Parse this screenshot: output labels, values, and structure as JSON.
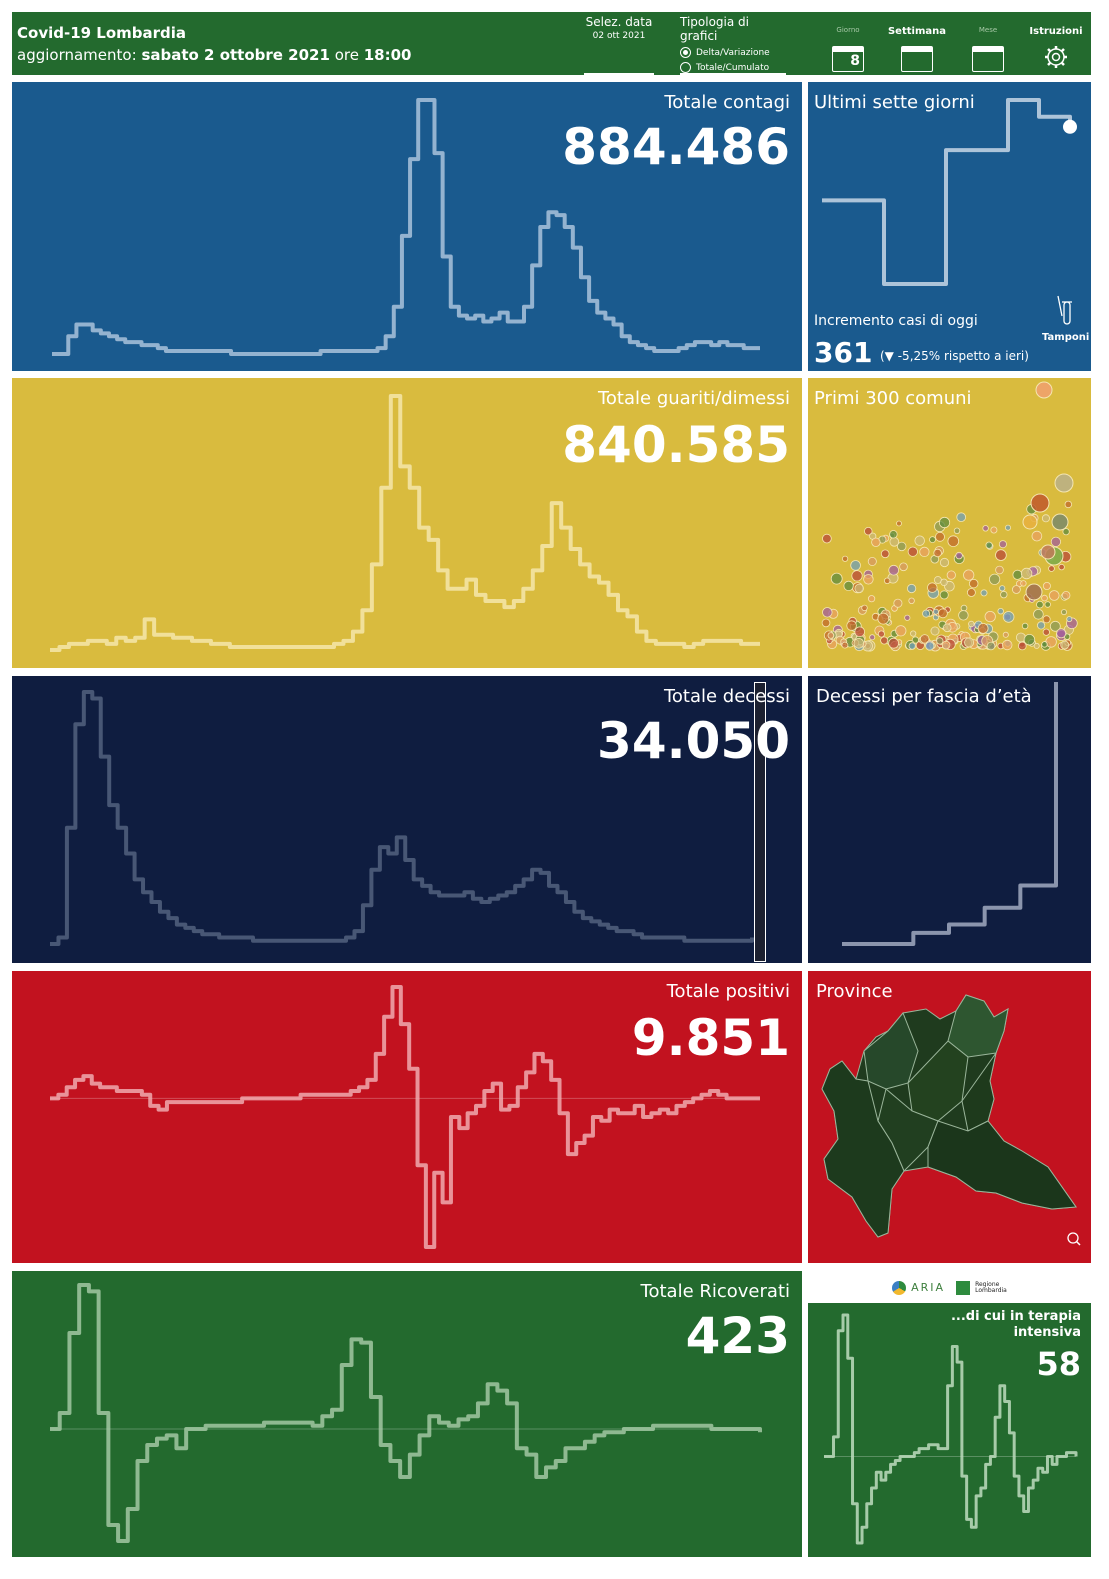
{
  "header": {
    "title": "Covid-19 Lombardia",
    "update_label": "aggiornamento:",
    "update_date": "sabato 2 ottobre 2021",
    "update_time_label": "ore",
    "update_time": "18:00",
    "date_selector_label": "Selez. data",
    "date_selector_value": "02 ott 2021",
    "chart_type_label": "Tipologia di grafici",
    "chart_type_options": [
      "Delta/Variazione",
      "Totale/Cumulato"
    ],
    "chart_type_selected": "Delta/Variazione",
    "period_giorno": "Giorno",
    "period_giorno_num": "8",
    "period_settimana": "Settimana",
    "period_mese": "Mese",
    "instructions": "Istruzioni",
    "bg_color": "#236a2e"
  },
  "panels": {
    "contagi": {
      "title": "Totale contagi",
      "value": "884.486",
      "color": "#1a5a8e"
    },
    "guariti": {
      "title": "Totale guariti/dimessi",
      "value": "840.585",
      "color": "#d9bb3e"
    },
    "decessi": {
      "title": "Totale decessi",
      "value": "34.050",
      "color": "#0f1d40"
    },
    "positivi": {
      "title": "Totale positivi",
      "value": "9.851",
      "color": "#c2121f"
    },
    "ricoverati": {
      "title": "Totale Ricoverati",
      "value": "423",
      "color": "#236a2e"
    }
  },
  "side": {
    "sette_giorni": {
      "title": "Ultimi sette giorni",
      "increment_label": "Incremento casi di oggi",
      "increment_value": "361",
      "increment_change": "(▼ -5,25% rispetto a  ieri)",
      "tamponi": "Tamponi"
    },
    "comuni": {
      "title": "Primi 300 comuni"
    },
    "fascia": {
      "title": "Decessi per fascia d’età"
    },
    "province": {
      "title": "Province"
    },
    "terapia": {
      "title_line1": "...di cui in terapia",
      "title_line2": "intensiva",
      "value": "58",
      "logo_aria": "ARIA",
      "logo_regione": "Regione Lombardia"
    }
  },
  "chart_data": [
    {
      "type": "line",
      "name": "contagi",
      "values": [
        2,
        2,
        8,
        12,
        12,
        10,
        9,
        8,
        7,
        6,
        6,
        5,
        5,
        4,
        3,
        3,
        3,
        3,
        3,
        3,
        3,
        3,
        2,
        2,
        2,
        2,
        2,
        2,
        2,
        2,
        2,
        2,
        2,
        3,
        3,
        3,
        3,
        3,
        3,
        3,
        4,
        8,
        18,
        42,
        68,
        88,
        88,
        70,
        35,
        18,
        15,
        14,
        15,
        13,
        14,
        16,
        13,
        13,
        18,
        32,
        45,
        50,
        49,
        45,
        38,
        28,
        20,
        16,
        14,
        12,
        8,
        6,
        5,
        4,
        3,
        3,
        3,
        4,
        5,
        6,
        6,
        5,
        6,
        5,
        5,
        4,
        4,
        4
      ]
    },
    {
      "type": "line",
      "name": "guariti",
      "values": [
        2,
        3,
        4,
        4,
        5,
        5,
        4,
        6,
        5,
        6,
        12,
        7,
        7,
        6,
        6,
        5,
        5,
        4,
        4,
        3,
        3,
        3,
        3,
        3,
        3,
        3,
        3,
        3,
        3,
        3,
        4,
        5,
        8,
        15,
        30,
        55,
        85,
        62,
        55,
        42,
        38,
        28,
        22,
        22,
        25,
        20,
        18,
        18,
        16,
        18,
        22,
        28,
        36,
        50,
        42,
        35,
        30,
        26,
        24,
        20,
        15,
        13,
        8,
        5,
        4,
        4,
        4,
        3,
        4,
        5,
        5,
        5,
        5,
        4,
        4,
        4
      ]
    },
    {
      "type": "line",
      "name": "decessi",
      "values": [
        2,
        4,
        38,
        70,
        80,
        78,
        60,
        45,
        38,
        30,
        22,
        18,
        15,
        12,
        10,
        8,
        7,
        6,
        5,
        5,
        4,
        4,
        4,
        4,
        3,
        3,
        3,
        3,
        3,
        3,
        3,
        3,
        3,
        3,
        3,
        4,
        6,
        14,
        25,
        32,
        30,
        35,
        28,
        22,
        20,
        18,
        17,
        17,
        17,
        18,
        16,
        15,
        16,
        17,
        18,
        20,
        22,
        25,
        24,
        20,
        18,
        15,
        12,
        10,
        9,
        8,
        7,
        6,
        6,
        5,
        4,
        4,
        4,
        4,
        4,
        3,
        3,
        3,
        3,
        3,
        3,
        3,
        3,
        4
      ]
    },
    {
      "type": "line",
      "name": "positivi",
      "values": [
        0,
        1,
        3,
        5,
        6,
        4,
        3,
        3,
        2,
        2,
        2,
        1,
        -2,
        -3,
        -1,
        -1,
        -1,
        -1,
        -1,
        -1,
        -1,
        -1,
        -1,
        0,
        0,
        0,
        0,
        0,
        0,
        0,
        1,
        1,
        1,
        1,
        1,
        1,
        2,
        3,
        5,
        12,
        22,
        30,
        20,
        8,
        -18,
        -40,
        -20,
        -28,
        -5,
        -8,
        -4,
        -2,
        2,
        4,
        -3,
        -2,
        3,
        7,
        12,
        10,
        5,
        -4,
        -15,
        -12,
        -10,
        -5,
        -6,
        -3,
        -4,
        -4,
        -2,
        -5,
        -4,
        -3,
        -4,
        -2,
        -1,
        0,
        1,
        2,
        1,
        0,
        0,
        0,
        0,
        0
      ]
    },
    {
      "type": "line",
      "name": "ricoverati",
      "values": [
        0,
        5,
        30,
        45,
        43,
        5,
        -30,
        -35,
        -25,
        -10,
        -5,
        -3,
        -2,
        -6,
        0,
        0,
        1,
        1,
        1,
        1,
        1,
        1,
        2,
        2,
        2,
        2,
        2,
        1,
        4,
        6,
        20,
        28,
        27,
        10,
        -5,
        -10,
        -15,
        -8,
        -2,
        4,
        2,
        1,
        3,
        4,
        8,
        14,
        12,
        8,
        -6,
        -8,
        -15,
        -12,
        -10,
        -6,
        -6,
        -4,
        -2,
        -1,
        -1,
        0,
        0,
        0,
        1,
        1,
        1,
        1,
        1,
        1,
        0,
        0,
        0,
        0,
        0,
        -1
      ]
    },
    {
      "type": "line",
      "name": "sette_giorni",
      "values": [
        30,
        30,
        5,
        5,
        45,
        45,
        60,
        55,
        52
      ]
    },
    {
      "type": "line",
      "name": "fascia",
      "values": [
        1,
        1,
        5,
        8,
        14,
        22,
        95
      ]
    },
    {
      "type": "line",
      "name": "terapia",
      "values": [
        0,
        0,
        5,
        32,
        36,
        25,
        -12,
        -22,
        -18,
        -12,
        -8,
        -4,
        -6,
        -4,
        -2,
        -1,
        0,
        0,
        0,
        1,
        2,
        2,
        3,
        3,
        2,
        2,
        18,
        28,
        24,
        -5,
        -16,
        -18,
        -10,
        -8,
        -2,
        0,
        10,
        18,
        14,
        6,
        -5,
        -10,
        -14,
        -8,
        -6,
        -3,
        -4,
        0,
        -2,
        0,
        0,
        1,
        1,
        0
      ]
    }
  ]
}
